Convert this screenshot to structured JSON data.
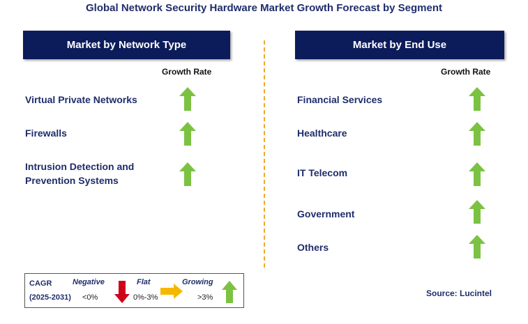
{
  "title": "Global Network Security Hardware Market Growth Forecast by Segment",
  "left_panel": {
    "header": "Market by Network Type",
    "growth_label": "Growth Rate",
    "items": [
      {
        "label_line1": "Virtual Private Networks",
        "label_line2": "",
        "trend": "growing"
      },
      {
        "label_line1": "Firewalls",
        "label_line2": "",
        "trend": "growing"
      },
      {
        "label_line1": "Intrusion Detection and",
        "label_line2": "Prevention Systems",
        "trend": "growing"
      }
    ]
  },
  "right_panel": {
    "header": "Market by End Use",
    "growth_label": "Growth Rate",
    "items": [
      {
        "label": "Financial Services",
        "trend": "growing"
      },
      {
        "label": "Healthcare",
        "trend": "growing"
      },
      {
        "label": "IT Telecom",
        "trend": "growing"
      },
      {
        "label": "Government",
        "trend": "growing"
      },
      {
        "label": "Others",
        "trend": "growing"
      }
    ]
  },
  "legend": {
    "cagr_label": "CAGR",
    "period": "(2025-2031)",
    "negative_label": "Negative",
    "negative_range": "<0%",
    "flat_label": "Flat",
    "flat_range": "0%-3%",
    "growing_label": "Growing",
    "growing_range": ">3%"
  },
  "source": "Source: Lucintel",
  "colors": {
    "header_bg": "#0c1c5a",
    "growing_arrow": "#7cc242",
    "negative_arrow": "#d0021b",
    "flat_arrow": "#f5b800",
    "divider": "#f0a830"
  }
}
